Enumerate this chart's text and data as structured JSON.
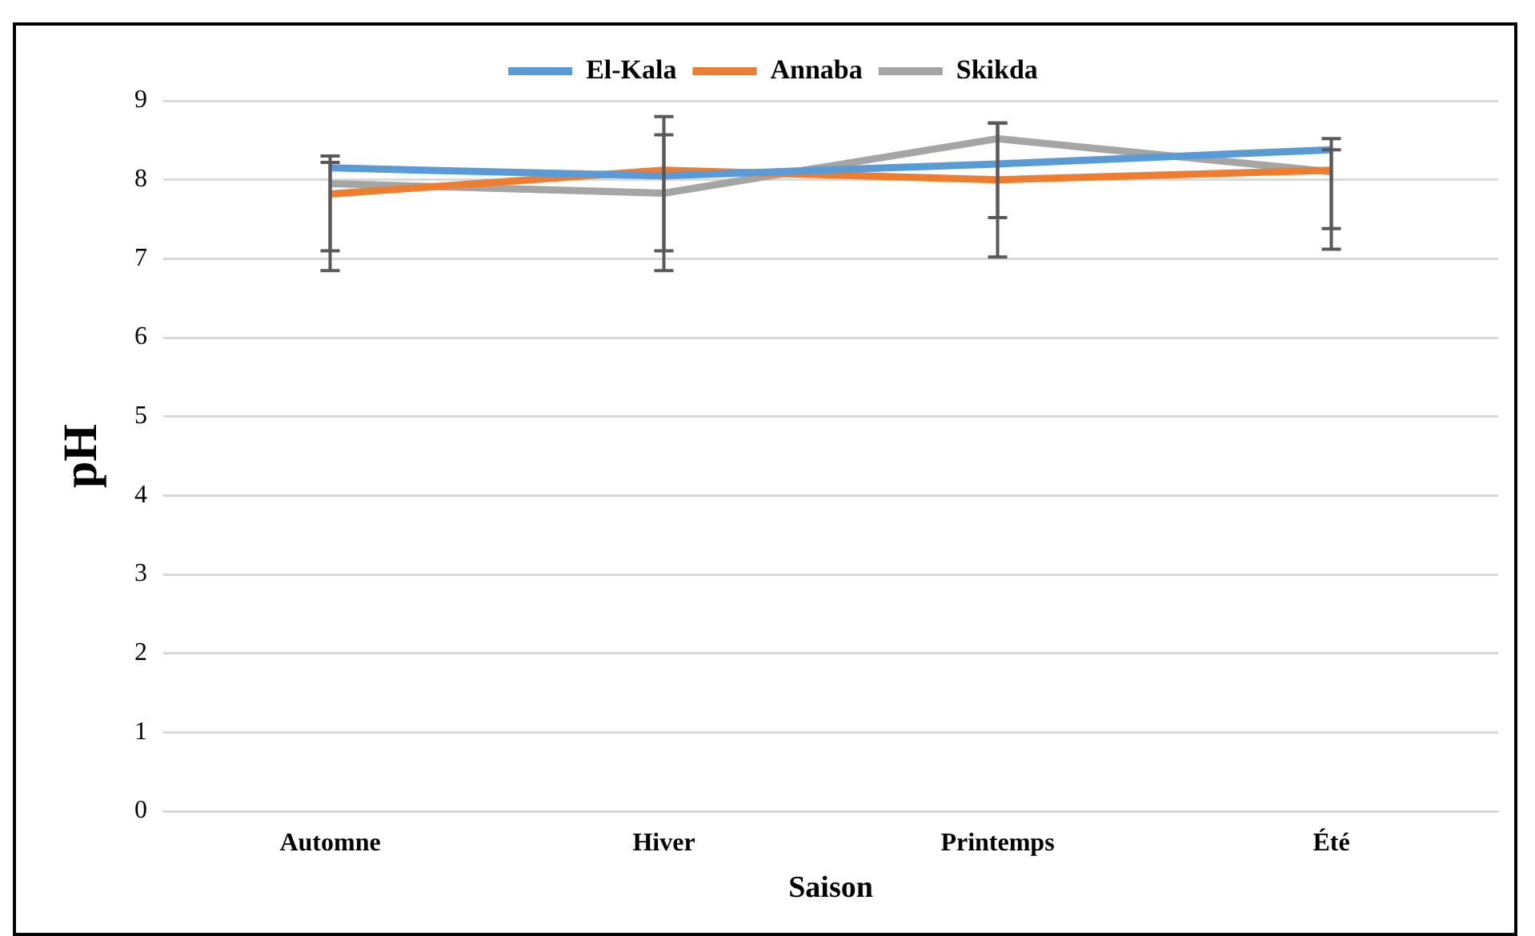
{
  "chart_data": {
    "type": "line",
    "xlabel": "Saison",
    "ylabel": "pH",
    "categories": [
      "Automne",
      "Hiver",
      "Printemps",
      "Été"
    ],
    "series": [
      {
        "name": "El-Kala",
        "color": "#5b9bd5",
        "values": [
          8.15,
          8.05,
          8.2,
          8.38
        ],
        "errors": [
          [
            6.85,
            8.3
          ],
          [
            6.85,
            8.8
          ],
          [
            7.02,
            8.72
          ],
          [
            7.12,
            8.52
          ]
        ]
      },
      {
        "name": "Annaba",
        "color": "#ed7d31",
        "values": [
          7.82,
          8.12,
          8.0,
          8.12
        ]
      },
      {
        "name": "Skikda",
        "color": "#a5a5a5",
        "values": [
          7.95,
          7.83,
          8.52,
          8.1
        ],
        "errors": [
          [
            7.1,
            8.22
          ],
          [
            7.1,
            8.57
          ],
          [
            7.52,
            8.72
          ],
          [
            7.38,
            8.38
          ]
        ]
      }
    ],
    "ylim": [
      0,
      9
    ],
    "yticks": [
      0,
      1,
      2,
      3,
      4,
      5,
      6,
      7,
      8,
      9
    ],
    "grid": "y",
    "legend": "top",
    "marker": "none",
    "line_style": "solid"
  }
}
